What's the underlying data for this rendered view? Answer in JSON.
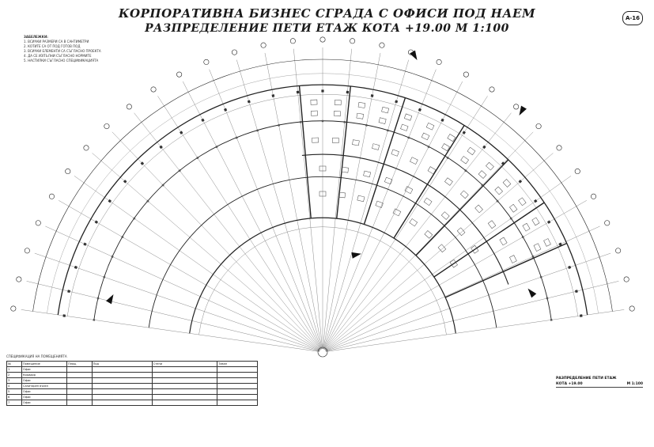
{
  "title": {
    "line1": "КОРПОРАТИВНА БИЗНЕС СГРАДА С ОФИСИ ПОД НАЕМ",
    "line2": "РАЗПРЕДЕЛЕНИЕ ПЕТИ ЕТАЖ  КОТА +19.00  М  1:100"
  },
  "sheet_number": "А-16",
  "notes": {
    "header": "ЗАБЕЛЕЖКИ:",
    "lines": [
      "1. ВСИЧКИ РАЗМЕРИ СА В САНТИМЕТРИ",
      "2. КОТИТЕ СА ОТ ПОД ГОТОВ ПОД",
      "3. ВСИЧКИ ЕЛЕМЕНТИ СА СЪГЛАСНО ПРОЕКТА",
      "4. ДА СЕ ИЗПЪЛНИ СЪГЛАСНО НОРМИТЕ",
      "5. НАСТИЛКИ СЪГЛАСНО СПЕЦИФИКАЦИЯТА"
    ]
  },
  "legend_table": {
    "caption": "СПЕЦИФИКАЦИЯ НА ПОМЕЩЕНИЯТА",
    "headers": [
      "№",
      "Помещение",
      "Площ",
      "Под",
      "Стени",
      "Таван"
    ],
    "rows": [
      [
        "1",
        "Офис",
        "",
        "",
        "",
        ""
      ],
      [
        "2",
        "Коридор",
        "",
        "",
        "",
        ""
      ],
      [
        "3",
        "Офис",
        "",
        "",
        "",
        ""
      ],
      [
        "4",
        "Санитарен възел",
        "",
        "",
        "",
        ""
      ],
      [
        "5",
        "Офис",
        "",
        "",
        "",
        ""
      ],
      [
        "6",
        "Офис",
        "",
        "",
        "",
        ""
      ],
      [
        "7",
        "Офис",
        "",
        "",
        "",
        ""
      ]
    ]
  },
  "plan_label": {
    "line1": "РАЗПРЕДЕЛЕНИЕ ПЕТИ ЕТАЖ",
    "scale_left": "КОТА +19.00",
    "scale_right": "М 1:100"
  },
  "footer": "",
  "colors": {
    "line": "#222222",
    "light": "#8a8a8a",
    "arrow": "#111111"
  }
}
